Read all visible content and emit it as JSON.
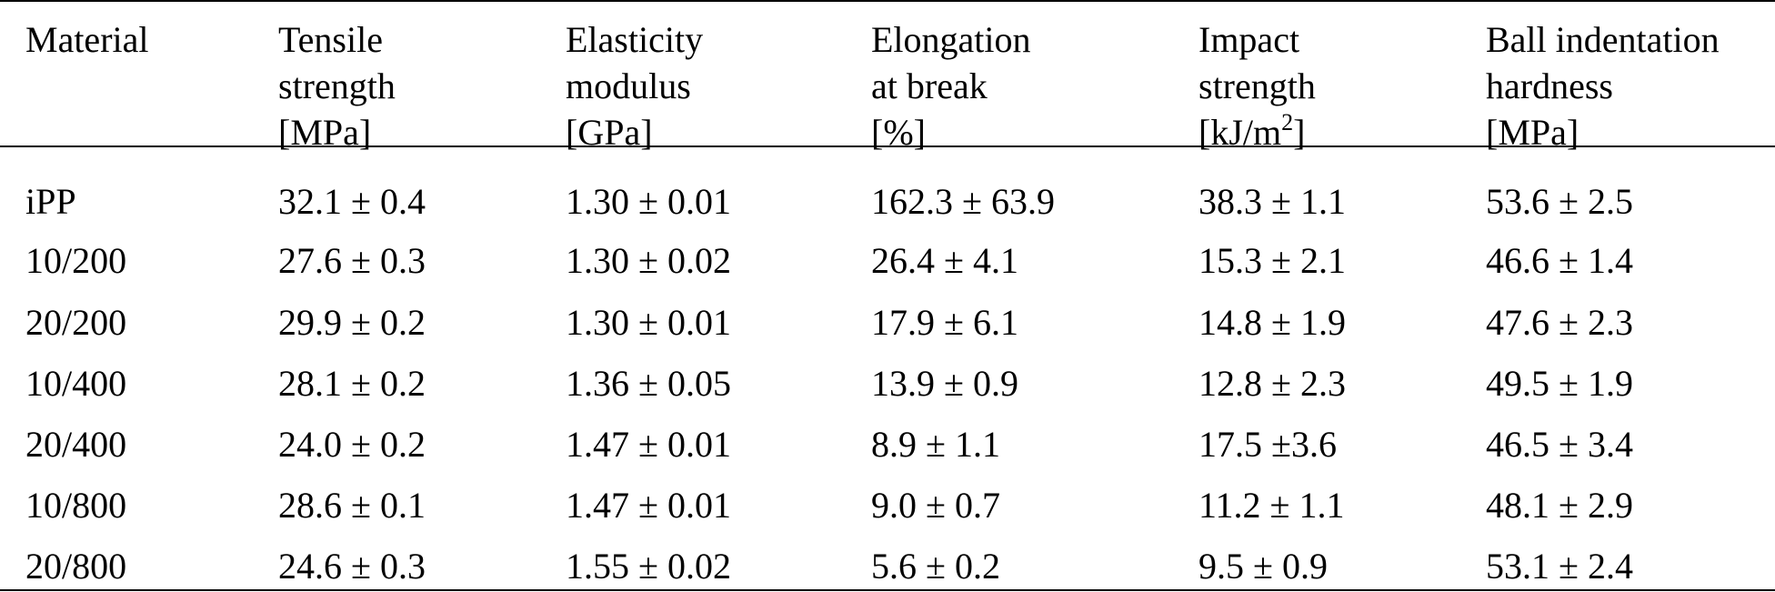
{
  "table": {
    "headers": [
      {
        "lines": [
          "Material"
        ]
      },
      {
        "lines": [
          "Tensile",
          "strength",
          "[MPa]"
        ]
      },
      {
        "lines": [
          "Elasticity",
          "modulus",
          "[GPa]"
        ]
      },
      {
        "lines": [
          "Elongation",
          "at break",
          "[%]"
        ]
      },
      {
        "lines": [
          "Impact",
          "strength"
        ],
        "unit_base": "[kJ/m",
        "unit_sup": "2",
        "unit_end": "]"
      },
      {
        "lines": [
          "Ball indentation",
          "hardness",
          "[MPa]"
        ]
      }
    ],
    "rows": [
      [
        "iPP",
        "32.1 ± 0.4",
        "1.30 ± 0.01",
        "162.3 ± 63.9",
        "38.3 ± 1.1",
        "53.6 ± 2.5"
      ],
      [
        "10/200",
        "27.6 ± 0.3",
        "1.30 ± 0.02",
        "26.4 ± 4.1",
        "15.3 ± 2.1",
        "46.6 ± 1.4"
      ],
      [
        "20/200",
        "29.9 ± 0.2",
        "1.30 ± 0.01",
        "17.9 ± 6.1",
        "14.8 ± 1.9",
        "47.6 ± 2.3"
      ],
      [
        "10/400",
        "28.1 ± 0.2",
        "1.36 ± 0.05",
        "13.9 ± 0.9",
        "12.8 ± 2.3",
        "49.5 ± 1.9"
      ],
      [
        "20/400",
        "24.0 ± 0.2",
        "1.47 ± 0.01",
        "8.9 ± 1.1",
        "17.5 ±3.6",
        "46.5 ± 3.4"
      ],
      [
        "10/800",
        "28.6 ± 0.1",
        "1.47 ± 0.01",
        "9.0 ± 0.7",
        "11.2 ± 1.1",
        "48.1 ± 2.9"
      ],
      [
        "20/800",
        "24.6 ± 0.3",
        "1.55 ± 0.02",
        "5.6 ± 0.2",
        "9.5 ± 0.9",
        "53.1 ± 2.4"
      ]
    ]
  }
}
